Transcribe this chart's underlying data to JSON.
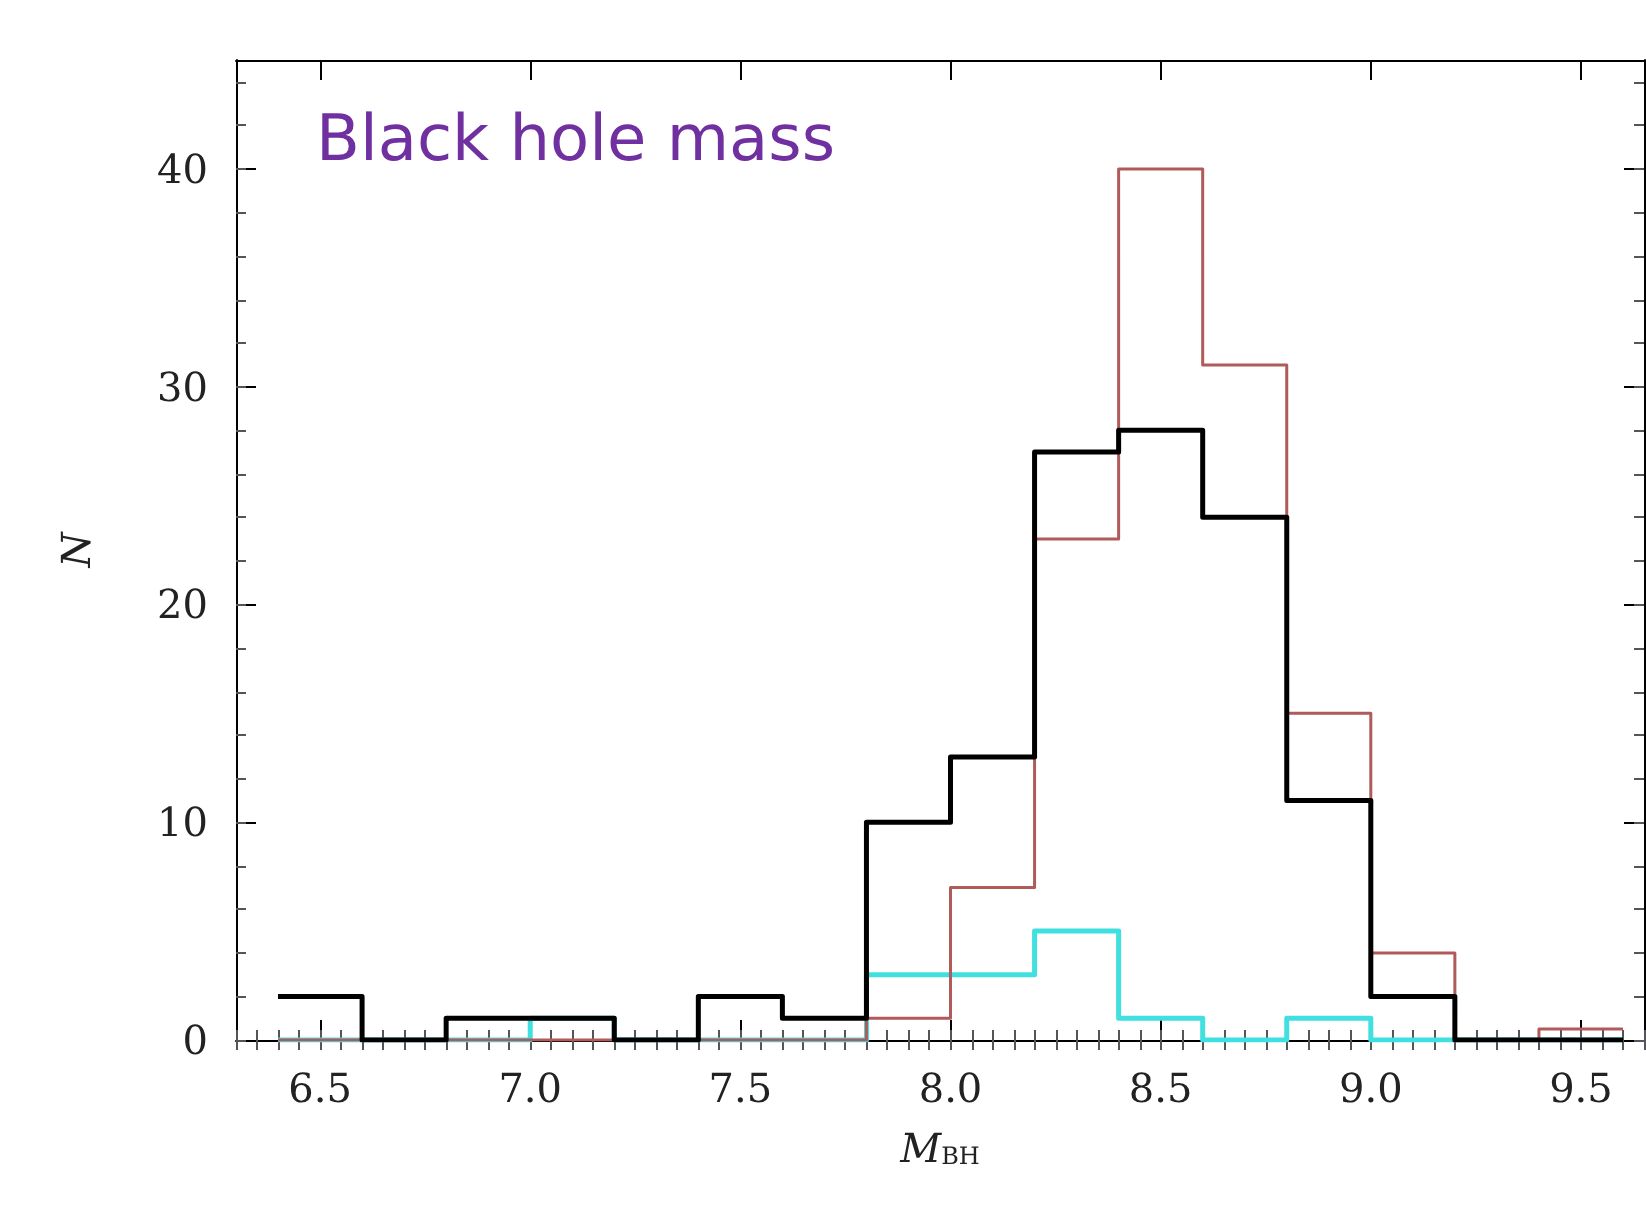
{
  "chart_data": {
    "type": "histogram",
    "title": "Black hole mass",
    "xlabel": "M$_{BH}$",
    "ylabel": "N",
    "bins": [
      6.4,
      6.6,
      6.8,
      7.0,
      7.2,
      7.4,
      7.6,
      7.8,
      8.0,
      8.2,
      8.4,
      8.6,
      8.8,
      9.0,
      9.2,
      9.4,
      9.6
    ],
    "series": [
      {
        "color": "#000000",
        "values": [
          2,
          0,
          1,
          1,
          0,
          2,
          1,
          10,
          13,
          27,
          28,
          24,
          11,
          2,
          0,
          0
        ]
      },
      {
        "color": "#b05a5a",
        "values": [
          0,
          0,
          0,
          0,
          0,
          0,
          0,
          1,
          7,
          23,
          40,
          31,
          15,
          4,
          0,
          0.5
        ]
      },
      {
        "color": "#40e0e0",
        "values": [
          0,
          0,
          0,
          1,
          0,
          0,
          0,
          3,
          3,
          5,
          1,
          0,
          1,
          0,
          0,
          0
        ]
      }
    ],
    "xlim": [
      6.3,
      9.65
    ],
    "xticks": [
      {
        "value": 6.5,
        "label": "6.5"
      },
      {
        "value": 7,
        "label": "7.0"
      },
      {
        "value": 7.5,
        "label": "7.5"
      },
      {
        "value": 8,
        "label": "8.0"
      },
      {
        "value": 8.5,
        "label": "8.5"
      },
      {
        "value": 9,
        "label": "9.0"
      },
      {
        "value": 9.5,
        "label": "9.5"
      }
    ],
    "ylim": [
      0,
      45
    ],
    "yticks": [
      0,
      10,
      20,
      30,
      40
    ],
    "grid": false
  }
}
